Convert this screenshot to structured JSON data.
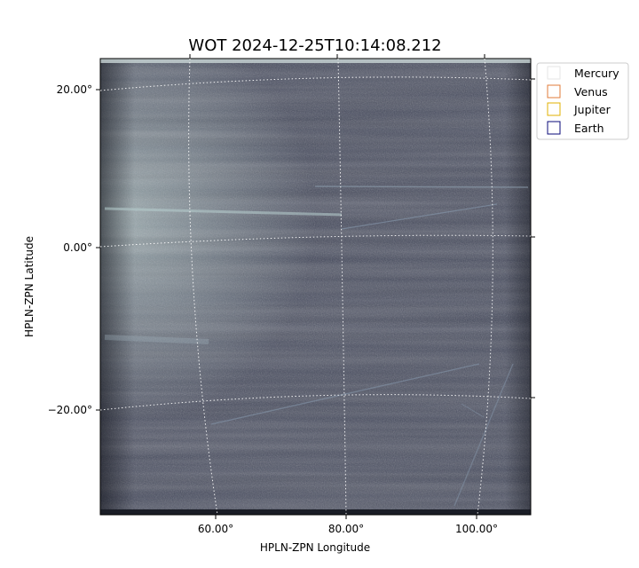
{
  "chart_data": {
    "type": "image",
    "title": "WOT 2024-12-25T10:14:08.212",
    "xlabel": "HPLN-ZPN Longitude",
    "ylabel": "HPLN-ZPN Latitude",
    "x_ticks": [
      "60.00°",
      "80.00°",
      "100.00°"
    ],
    "y_ticks": [
      "20.00°",
      "0.00°",
      "−20.00°"
    ],
    "x_tick_values": [
      60,
      80,
      100
    ],
    "y_tick_values": [
      20,
      0,
      -20
    ],
    "xlim": [
      42.6,
      107.7
    ],
    "ylim": [
      -33.0,
      23.4
    ],
    "grid": true,
    "legend_position": "outside-top-right",
    "legend": [
      {
        "name": "Mercury",
        "color": "#e6e6e6"
      },
      {
        "name": "Venus",
        "color": "#e07b39"
      },
      {
        "name": "Jupiter",
        "color": "#e0b000"
      },
      {
        "name": "Earth",
        "color": "#0a0a7a"
      }
    ],
    "colormap": "bone"
  }
}
